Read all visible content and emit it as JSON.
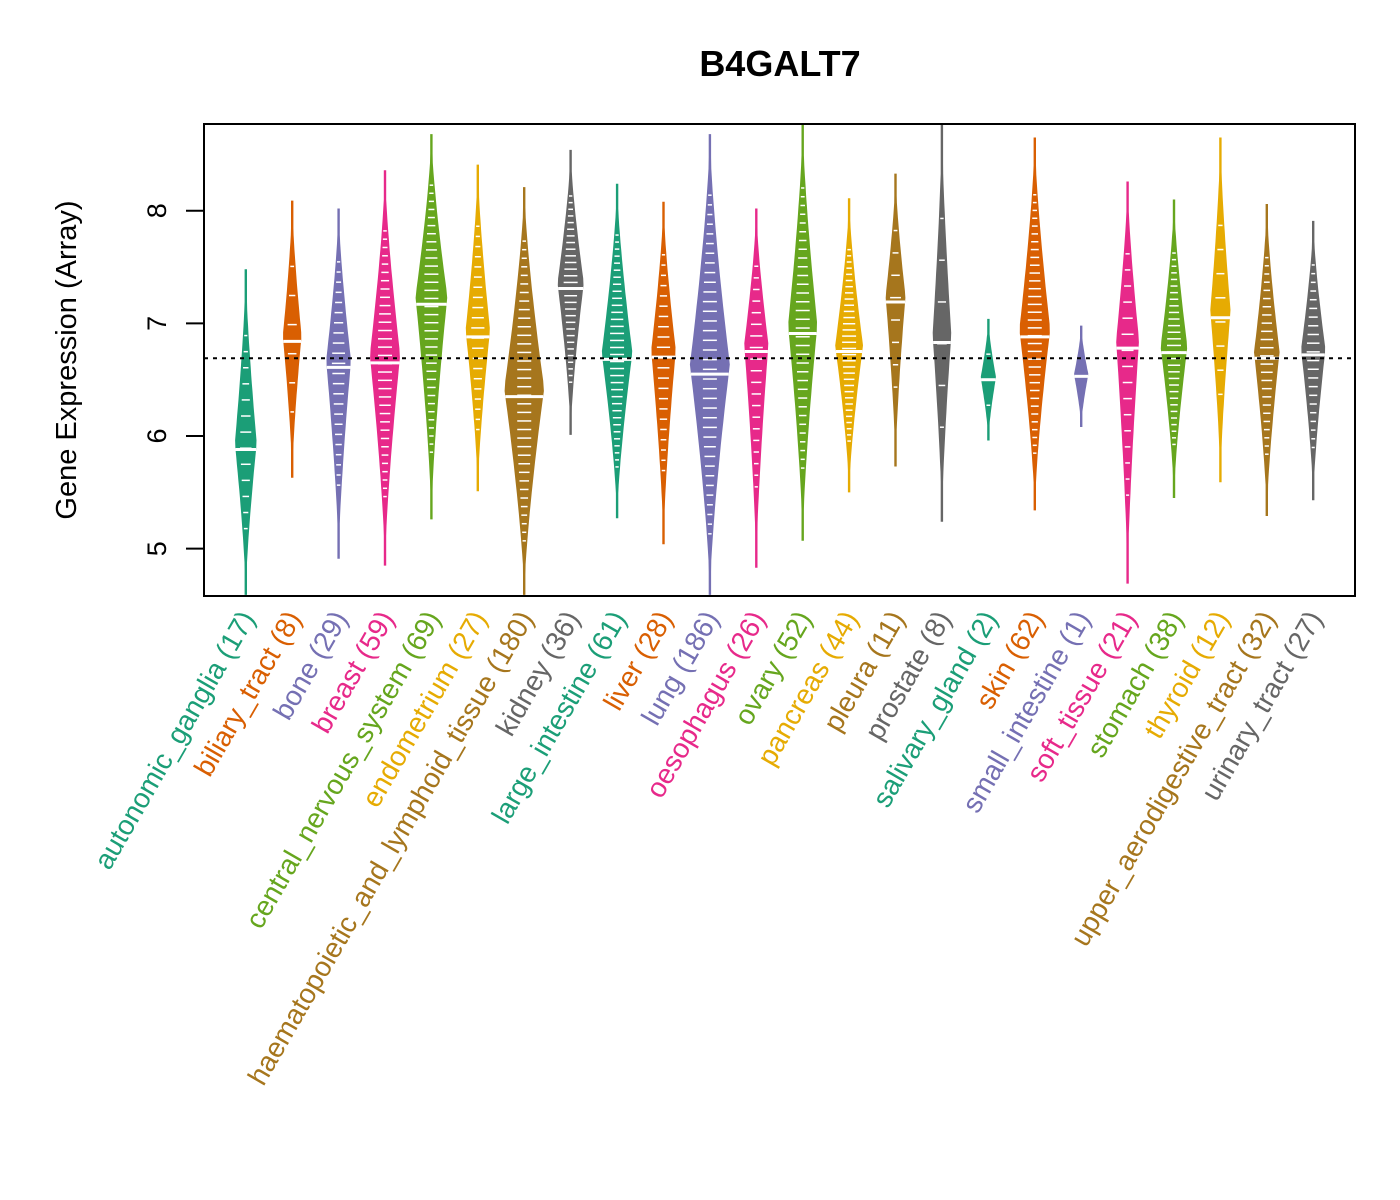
{
  "chart_data": {
    "type": "violin",
    "title": "B4GALT7",
    "xlabel": "",
    "ylabel": "Gene Expression (Array)",
    "ylim": [
      4.58,
      8.77
    ],
    "yticks": [
      5,
      6,
      7,
      8
    ],
    "reference_line": {
      "value": 6.69,
      "style": "dotted"
    },
    "grid": false,
    "legend": "none",
    "categories": [
      {
        "name": "autonomic_ganglia",
        "n": 17,
        "color": "#1B9E77",
        "min": 4.59,
        "max": 7.48,
        "median": 5.88
      },
      {
        "name": "biliary_tract",
        "n": 8,
        "color": "#D95F02",
        "min": 5.63,
        "max": 8.09,
        "median": 6.84
      },
      {
        "name": "bone",
        "n": 29,
        "color": "#7570B3",
        "min": 4.91,
        "max": 8.02,
        "median": 6.61
      },
      {
        "name": "breast",
        "n": 59,
        "color": "#E7298A",
        "min": 4.85,
        "max": 8.36,
        "median": 6.65
      },
      {
        "name": "central_nervous_system",
        "n": 69,
        "color": "#66A61E",
        "min": 5.26,
        "max": 8.68,
        "median": 7.17
      },
      {
        "name": "endometrium",
        "n": 27,
        "color": "#E6AB02",
        "min": 5.51,
        "max": 8.41,
        "median": 6.88
      },
      {
        "name": "haematopoietic_and_lymphoid_tissue",
        "n": 180,
        "color": "#A6761D",
        "min": 4.59,
        "max": 8.21,
        "median": 6.35
      },
      {
        "name": "kidney",
        "n": 36,
        "color": "#666666",
        "min": 6.01,
        "max": 8.54,
        "median": 7.31
      },
      {
        "name": "large_intestine",
        "n": 61,
        "color": "#1B9E77",
        "min": 5.27,
        "max": 8.24,
        "median": 6.68
      },
      {
        "name": "liver",
        "n": 28,
        "color": "#D95F02",
        "min": 5.04,
        "max": 8.08,
        "median": 6.7
      },
      {
        "name": "lung",
        "n": 186,
        "color": "#7570B3",
        "min": 4.59,
        "max": 8.68,
        "median": 6.55
      },
      {
        "name": "oesophagus",
        "n": 26,
        "color": "#E7298A",
        "min": 4.83,
        "max": 8.02,
        "median": 6.75
      },
      {
        "name": "ovary",
        "n": 52,
        "color": "#66A61E",
        "min": 5.07,
        "max": 8.77,
        "median": 6.91
      },
      {
        "name": "pancreas",
        "n": 44,
        "color": "#E6AB02",
        "min": 5.5,
        "max": 8.11,
        "median": 6.75
      },
      {
        "name": "pleura",
        "n": 11,
        "color": "#A6761D",
        "min": 5.73,
        "max": 8.33,
        "median": 7.19
      },
      {
        "name": "prostate",
        "n": 8,
        "color": "#666666",
        "min": 5.24,
        "max": 8.77,
        "median": 6.83
      },
      {
        "name": "salivary_gland",
        "n": 2,
        "color": "#1B9E77",
        "min": 5.96,
        "max": 7.04,
        "median": 6.5
      },
      {
        "name": "skin",
        "n": 62,
        "color": "#D95F02",
        "min": 5.34,
        "max": 8.65,
        "median": 6.88
      },
      {
        "name": "small_intestine",
        "n": 1,
        "color": "#7570B3",
        "min": 6.08,
        "max": 6.98,
        "median": 6.53
      },
      {
        "name": "soft_tissue",
        "n": 21,
        "color": "#E7298A",
        "min": 4.69,
        "max": 8.26,
        "median": 6.78
      },
      {
        "name": "stomach",
        "n": 38,
        "color": "#66A61E",
        "min": 5.45,
        "max": 8.1,
        "median": 6.74
      },
      {
        "name": "thyroid",
        "n": 12,
        "color": "#E6AB02",
        "min": 5.59,
        "max": 8.65,
        "median": 7.05
      },
      {
        "name": "upper_aerodigestive_tract",
        "n": 32,
        "color": "#A6761D",
        "min": 5.29,
        "max": 8.06,
        "median": 6.69
      },
      {
        "name": "urinary_tract",
        "n": 27,
        "color": "#666666",
        "min": 5.43,
        "max": 7.91,
        "median": 6.72
      }
    ]
  }
}
